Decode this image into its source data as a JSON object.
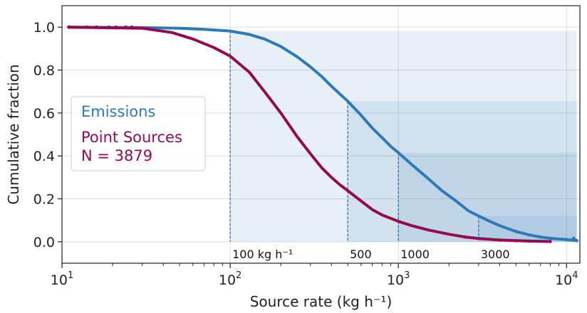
{
  "chart_data": {
    "type": "line",
    "xlabel": "Source rate (kg h⁻¹)",
    "ylabel": "Cumulative fraction",
    "xscale": "log",
    "xlim": [
      10,
      12000
    ],
    "ylim": [
      -0.1,
      1.1
    ],
    "x_ticks": [
      {
        "value": 10,
        "base": "10",
        "exp": "1"
      },
      {
        "value": 100,
        "base": "10",
        "exp": "2"
      },
      {
        "value": 1000,
        "base": "10",
        "exp": "3"
      },
      {
        "value": 10000,
        "base": "10",
        "exp": "4"
      }
    ],
    "y_ticks": [
      {
        "value": 0.0,
        "label": "0.0"
      },
      {
        "value": 0.2,
        "label": "0.2"
      },
      {
        "value": 0.4,
        "label": "0.4"
      },
      {
        "value": 0.6,
        "label": "0.6"
      },
      {
        "value": 0.8,
        "label": "0.8"
      },
      {
        "value": 1.0,
        "label": "1.0"
      }
    ],
    "grid": true,
    "legend": {
      "placement": "center-left",
      "entries": [
        {
          "text": "Emissions",
          "color": "#2e7ab8"
        },
        {
          "text": "Point Sources",
          "color": "#950a4f"
        },
        {
          "text": "N = 3879",
          "color": "#950a4f"
        }
      ]
    },
    "series": [
      {
        "name": "Emissions",
        "color": "#2e7ab8",
        "points": [
          [
            11,
            1.0
          ],
          [
            30,
            0.998
          ],
          [
            50,
            0.995
          ],
          [
            70,
            0.99
          ],
          [
            100,
            0.982
          ],
          [
            130,
            0.966
          ],
          [
            160,
            0.945
          ],
          [
            200,
            0.91
          ],
          [
            250,
            0.862
          ],
          [
            300,
            0.815
          ],
          [
            350,
            0.77
          ],
          [
            400,
            0.725
          ],
          [
            450,
            0.688
          ],
          [
            500,
            0.655
          ],
          [
            600,
            0.59
          ],
          [
            700,
            0.53
          ],
          [
            800,
            0.485
          ],
          [
            900,
            0.445
          ],
          [
            1000,
            0.415
          ],
          [
            1200,
            0.36
          ],
          [
            1500,
            0.295
          ],
          [
            1800,
            0.24
          ],
          [
            2200,
            0.19
          ],
          [
            2600,
            0.145
          ],
          [
            3000,
            0.12
          ],
          [
            3500,
            0.095
          ],
          [
            4000,
            0.075
          ],
          [
            5000,
            0.048
          ],
          [
            6000,
            0.032
          ],
          [
            7000,
            0.022
          ],
          [
            8000,
            0.016
          ],
          [
            10000,
            0.01
          ],
          [
            11500,
            0.005
          ]
        ],
        "end_marks": [
          [
            11000,
            0.015
          ],
          [
            11200,
            0.008
          ]
        ]
      },
      {
        "name": "Point Sources",
        "color": "#950a4f",
        "points": [
          [
            11,
            1.0
          ],
          [
            30,
            0.995
          ],
          [
            45,
            0.975
          ],
          [
            60,
            0.945
          ],
          [
            80,
            0.905
          ],
          [
            100,
            0.865
          ],
          [
            130,
            0.79
          ],
          [
            160,
            0.7
          ],
          [
            200,
            0.6
          ],
          [
            250,
            0.49
          ],
          [
            300,
            0.41
          ],
          [
            350,
            0.345
          ],
          [
            400,
            0.3
          ],
          [
            450,
            0.265
          ],
          [
            500,
            0.238
          ],
          [
            600,
            0.19
          ],
          [
            700,
            0.15
          ],
          [
            800,
            0.125
          ],
          [
            1000,
            0.095
          ],
          [
            1200,
            0.075
          ],
          [
            1500,
            0.055
          ],
          [
            2000,
            0.035
          ],
          [
            2500,
            0.022
          ],
          [
            3000,
            0.015
          ],
          [
            4000,
            0.008
          ],
          [
            5000,
            0.005
          ],
          [
            6000,
            0.003
          ],
          [
            8000,
            0.001
          ]
        ]
      }
    ],
    "shaded_regions": [
      {
        "x_start": 100,
        "x_end": 11500,
        "y_top": 0.982,
        "annotation": "100 kg h⁻¹",
        "color": "#2e7ab8",
        "opacity": 0.11
      },
      {
        "x_start": 500,
        "x_end": 11500,
        "y_top": 0.655,
        "annotation": "500",
        "color": "#2e7ab8",
        "opacity": 0.11
      },
      {
        "x_start": 1000,
        "x_end": 11500,
        "y_top": 0.415,
        "annotation": "1000",
        "color": "#2e7ab8",
        "opacity": 0.11
      },
      {
        "x_start": 3000,
        "x_end": 11500,
        "y_top": 0.12,
        "annotation": "3000",
        "color": "#2e7ab8",
        "opacity": 0.11
      }
    ]
  }
}
